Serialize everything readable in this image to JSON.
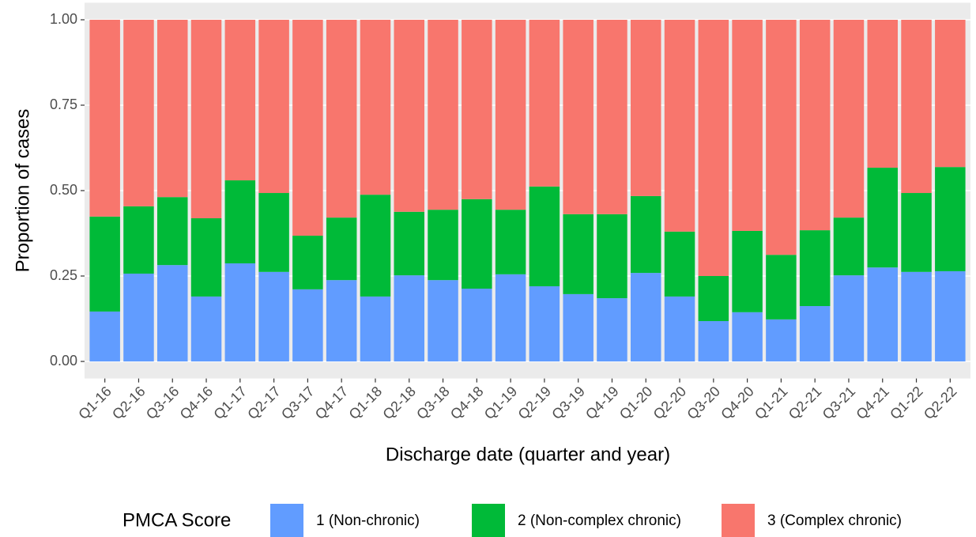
{
  "chart_data": {
    "type": "stacked_bar",
    "x_label": "Discharge date (quarter and year)",
    "y_label": "Proportion of cases",
    "legend_title": "PMCA Score",
    "legend_position": "bottom",
    "categories": [
      "Q1-16",
      "Q2-16",
      "Q3-16",
      "Q4-16",
      "Q1-17",
      "Q2-17",
      "Q3-17",
      "Q4-17",
      "Q1-18",
      "Q2-18",
      "Q3-18",
      "Q4-18",
      "Q1-19",
      "Q2-19",
      "Q3-19",
      "Q4-19",
      "Q1-20",
      "Q2-20",
      "Q3-20",
      "Q4-20",
      "Q1-21",
      "Q2-21",
      "Q3-21",
      "Q4-21",
      "Q1-22",
      "Q2-22"
    ],
    "series": [
      {
        "name": "1 (Non-chronic)",
        "color": "#619cff",
        "values": [
          0.146,
          0.257,
          0.282,
          0.19,
          0.287,
          0.262,
          0.211,
          0.238,
          0.19,
          0.252,
          0.238,
          0.213,
          0.255,
          0.22,
          0.197,
          0.185,
          0.259,
          0.19,
          0.118,
          0.144,
          0.123,
          0.162,
          0.252,
          0.275,
          0.262,
          0.264
        ]
      },
      {
        "name": "2 (Non-complex chronic)",
        "color": "#00ba38",
        "values": [
          0.278,
          0.197,
          0.199,
          0.229,
          0.243,
          0.231,
          0.157,
          0.183,
          0.298,
          0.186,
          0.206,
          0.262,
          0.189,
          0.292,
          0.234,
          0.246,
          0.225,
          0.19,
          0.132,
          0.238,
          0.189,
          0.222,
          0.169,
          0.292,
          0.231,
          0.305
        ]
      },
      {
        "name": "3 (Complex chronic)",
        "color": "#f8766d",
        "values": [
          0.576,
          0.546,
          0.519,
          0.581,
          0.47,
          0.507,
          0.632,
          0.579,
          0.512,
          0.562,
          0.556,
          0.525,
          0.556,
          0.488,
          0.569,
          0.569,
          0.516,
          0.62,
          0.75,
          0.618,
          0.688,
          0.616,
          0.579,
          0.433,
          0.507,
          0.431
        ]
      }
    ],
    "ylim": [
      -0.05,
      1.05
    ],
    "yticks": [
      {
        "value": 0,
        "label": "0.00"
      },
      {
        "value": 0.25,
        "label": "0.25"
      },
      {
        "value": 0.5,
        "label": "0.50"
      },
      {
        "value": 0.75,
        "label": "0.75"
      },
      {
        "value": 1,
        "label": "1.00"
      }
    ],
    "grid": true
  }
}
